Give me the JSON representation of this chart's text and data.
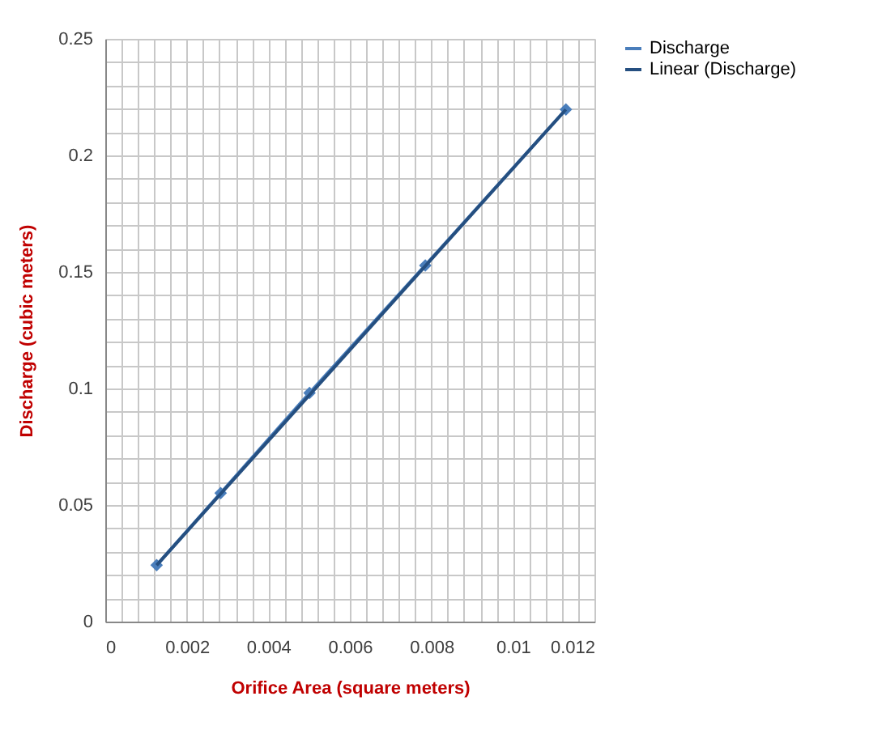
{
  "chart_data": {
    "type": "line",
    "xlabel": "Orifice Area (square meters)",
    "ylabel": "Discharge (cubic meters)",
    "x": [
      0.00126,
      0.00283,
      0.00501,
      0.00785,
      0.0113
    ],
    "series": [
      {
        "name": "Discharge",
        "color": "#4a7ebb",
        "marker": "diamond",
        "values": [
          0.0242,
          0.0551,
          0.0981,
          0.1528,
          0.2197
        ]
      },
      {
        "name": "Linear (Discharge)",
        "type": "line",
        "color": "#254f80",
        "marker": "none",
        "x": [
          0.00126,
          0.0113
        ],
        "values": [
          0.0242,
          0.2197
        ]
      }
    ],
    "xlim": [
      0,
      0.012
    ],
    "ylim": [
      0,
      0.25
    ],
    "xticks": [
      0,
      {
        "value": 0.0004,
        "label": null
      },
      {
        "value": 0.0008,
        "label": null
      },
      {
        "value": 0.0012,
        "label": null
      },
      {
        "value": 0.0016,
        "label": null
      },
      0.002,
      {
        "value": 0.0024,
        "label": null
      },
      {
        "value": 0.0028,
        "label": null
      },
      {
        "value": 0.0032,
        "label": null
      },
      {
        "value": 0.0036,
        "label": null
      },
      0.004,
      {
        "value": 0.0044,
        "label": null
      },
      {
        "value": 0.0048,
        "label": null
      },
      {
        "value": 0.0052,
        "label": null
      },
      {
        "value": 0.0056,
        "label": null
      },
      0.006,
      {
        "value": 0.0064,
        "label": null
      },
      {
        "value": 0.0068,
        "label": null
      },
      {
        "value": 0.0072,
        "label": null
      },
      {
        "value": 0.0076,
        "label": null
      },
      0.008,
      {
        "value": 0.0084,
        "label": null
      },
      {
        "value": 0.0088,
        "label": null
      },
      {
        "value": 0.0092,
        "label": null
      },
      {
        "value": 0.0096,
        "label": null
      },
      0.01,
      {
        "value": 0.0104,
        "label": null
      },
      {
        "value": 0.0108,
        "label": null
      },
      {
        "value": 0.0112,
        "label": null
      },
      {
        "value": 0.0116,
        "label": null
      },
      0.012
    ],
    "yticks": [
      0,
      {
        "value": 0.01,
        "label": null
      },
      {
        "value": 0.02,
        "label": null
      },
      {
        "value": 0.03,
        "label": null
      },
      {
        "value": 0.04,
        "label": null
      },
      0.05,
      {
        "value": 0.06,
        "label": null
      },
      {
        "value": 0.07,
        "label": null
      },
      {
        "value": 0.08,
        "label": null
      },
      {
        "value": 0.09,
        "label": null
      },
      0.1,
      {
        "value": 0.11,
        "label": null
      },
      {
        "value": 0.12,
        "label": null
      },
      {
        "value": 0.13,
        "label": null
      },
      {
        "value": 0.14,
        "label": null
      },
      0.15,
      {
        "value": 0.16,
        "label": null
      },
      {
        "value": 0.17,
        "label": null
      },
      {
        "value": 0.18,
        "label": null
      },
      {
        "value": 0.19,
        "label": null
      },
      0.2,
      {
        "value": 0.21,
        "label": null
      },
      {
        "value": 0.22,
        "label": null
      },
      {
        "value": 0.23,
        "label": null
      },
      {
        "value": 0.24,
        "label": null
      },
      0.25
    ],
    "grid": true,
    "legend": "right",
    "line_style": "solid"
  }
}
